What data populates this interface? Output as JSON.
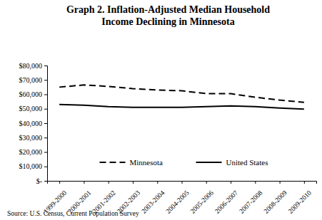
{
  "chart_data": {
    "type": "line",
    "title": "Graph 2. Inflation-Adjusted Median Household Income Declining in Minnesota",
    "source": "Source: U.S. Census, Current Population Survey",
    "categories": [
      "1999-2000",
      "2000-2001",
      "2001-2002",
      "2002-2003",
      "2003-2004",
      "2004-2005",
      "2005-2006",
      "2006-2007",
      "2007-2008",
      "2008-2009",
      "2009-2010"
    ],
    "series": [
      {
        "name": "Minnesota",
        "color": "#000000",
        "line_style": "dashed",
        "values": [
          65000,
          66500,
          65500,
          64000,
          63000,
          62500,
          60500,
          60500,
          58000,
          56000,
          54500
        ]
      },
      {
        "name": "United States",
        "color": "#000000",
        "line_style": "solid",
        "values": [
          53000,
          52500,
          51500,
          51000,
          51000,
          51000,
          51500,
          52000,
          51500,
          50500,
          49800
        ]
      }
    ],
    "ylim": [
      0,
      80000
    ],
    "yticks": [
      {
        "value": 0,
        "label": "$-"
      },
      {
        "value": 10000,
        "label": "$10,000"
      },
      {
        "value": 20000,
        "label": "$20,000"
      },
      {
        "value": 30000,
        "label": "$30,000"
      },
      {
        "value": 40000,
        "label": "$40,000"
      },
      {
        "value": 50000,
        "label": "$50,000"
      },
      {
        "value": 60000,
        "label": "$60,000"
      },
      {
        "value": 70000,
        "label": "$70,000"
      },
      {
        "value": 80000,
        "label": "$80,000"
      }
    ],
    "grid": false,
    "legend": "bottom"
  }
}
